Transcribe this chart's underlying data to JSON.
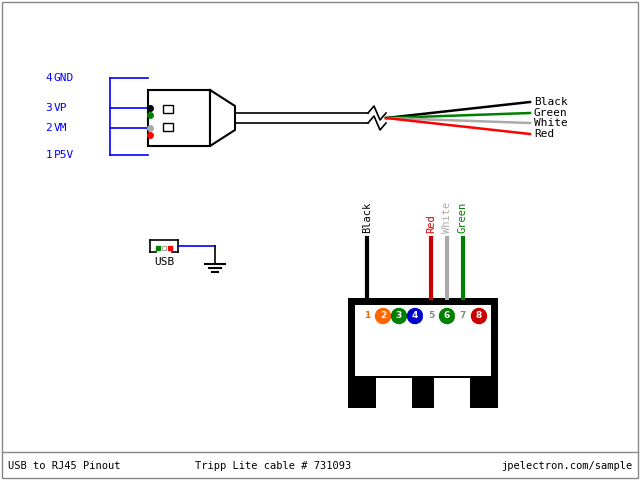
{
  "title": "USB to RJ45 Pinout",
  "subtitle": "Tripp Lite cable # 731093",
  "footer_right": "jpelectron.com/sample",
  "pin_labels": [
    "4  GND",
    "3  VP",
    "2  VM",
    "1  P5V"
  ],
  "wire_colors_right": [
    "#000000",
    "#008000",
    "#aaaaaa",
    "#ff0000"
  ],
  "wire_labels_right": [
    "Black",
    "Green",
    "White",
    "Red"
  ],
  "rj45_pin_nums": [
    "1",
    "2",
    "3",
    "4",
    "5",
    "6",
    "7",
    "8"
  ],
  "rj45_pin_bg": [
    "#ffffff",
    "#ff6600",
    "#008000",
    "#0000cc",
    "#ffffff",
    "#008000",
    "#ffffff",
    "#cc0000"
  ],
  "rj45_pin_fg": [
    "#ff6600",
    "#ffffff",
    "#ffffff",
    "#ffffff",
    "#888888",
    "#ffffff",
    "#888888",
    "#ffffff"
  ]
}
